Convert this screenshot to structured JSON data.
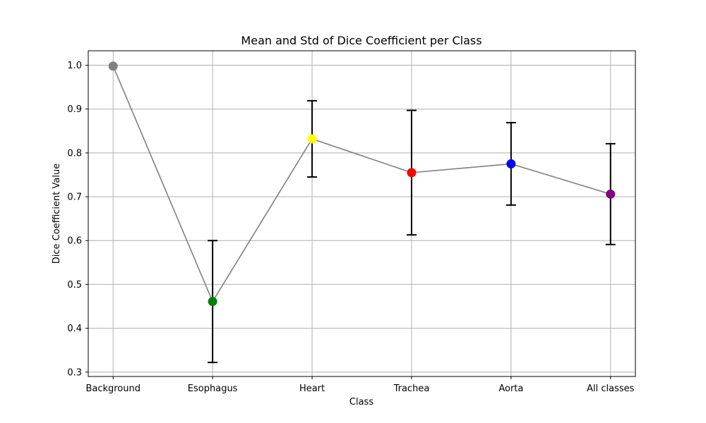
{
  "chart_data": {
    "type": "line",
    "title": "Mean and Std of Dice Coefficient per Class",
    "xlabel": "Class",
    "ylabel": "Dice Coefficient Value",
    "categories": [
      "Background",
      "Esophagus",
      "Heart",
      "Trachea",
      "Aorta",
      "All classes"
    ],
    "series": [
      {
        "values": [
          0.998,
          0.461,
          0.832,
          0.755,
          0.775,
          0.706
        ],
        "std": [
          0.0,
          0.139,
          0.087,
          0.142,
          0.094,
          0.115
        ],
        "line_color": "#808080",
        "marker_colors": [
          "#808080",
          "#008000",
          "#ffff00",
          "#ff0000",
          "#0000ff",
          "#800080"
        ]
      }
    ],
    "ylim": [
      0.29,
      1.033
    ],
    "yticks": [
      "0.3",
      "0.4",
      "0.5",
      "0.6",
      "0.7",
      "0.8",
      "0.9",
      "1.0"
    ],
    "grid": true
  }
}
